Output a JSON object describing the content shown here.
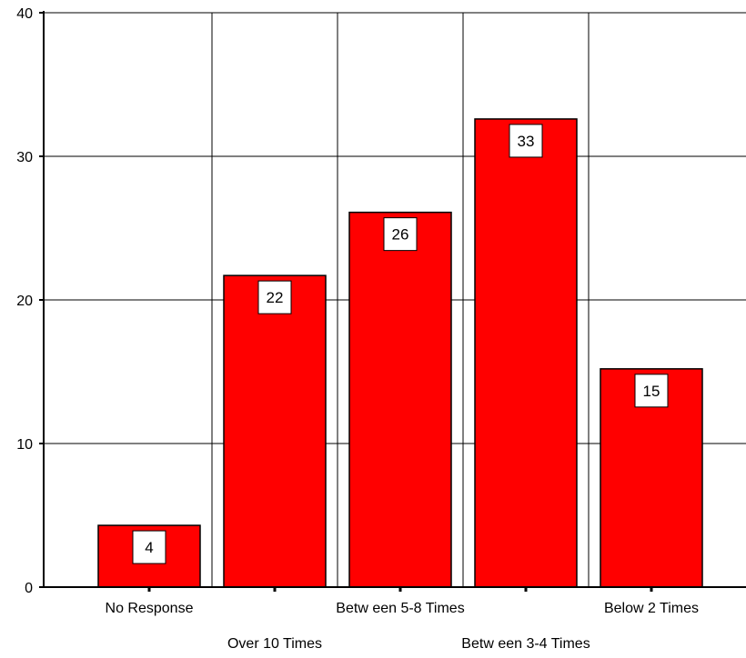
{
  "chart_data": {
    "type": "bar",
    "categories": [
      "No Response",
      "Over 10 Times",
      "Betw een 5-8 Times",
      "Betw een 3-4 Times",
      "Below  2 Times"
    ],
    "values": [
      4.3,
      21.7,
      26.1,
      32.6,
      15.2
    ],
    "data_labels": [
      "4",
      "22",
      "26",
      "33",
      "15"
    ],
    "yticks": [
      0,
      10,
      20,
      30,
      40
    ],
    "ytick_labels": [
      "0",
      "10",
      "20",
      "30",
      "40"
    ],
    "ylim": [
      0,
      40
    ],
    "grid": true,
    "legend": "none",
    "colors": {
      "bar": "#ff0000",
      "outline": "#000000",
      "background": "#ffffff",
      "label_box": "#ffffff"
    }
  }
}
